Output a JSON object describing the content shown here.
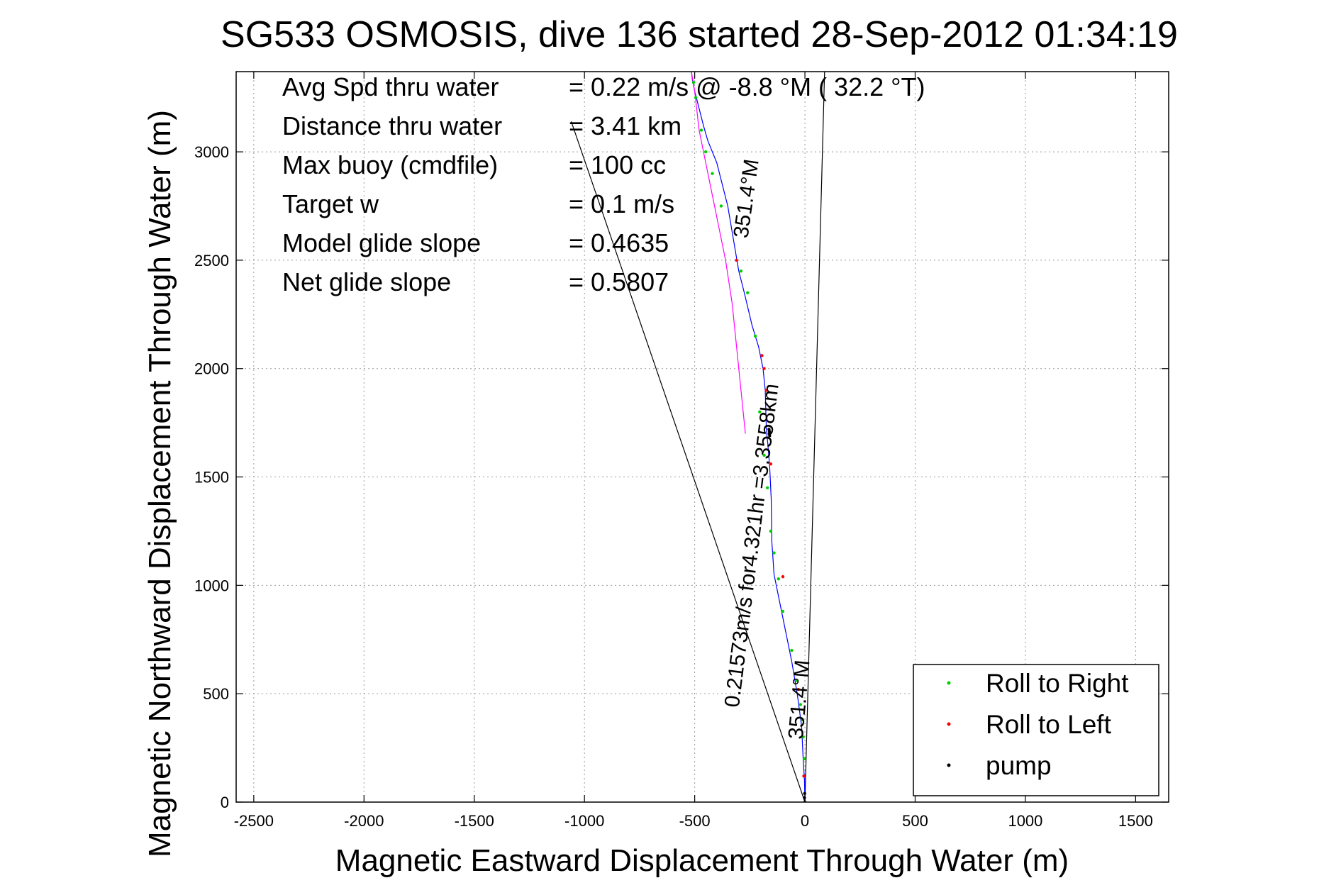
{
  "chart_data": {
    "type": "scatter",
    "title": "SG533 OSMOSIS, dive 136 started 28-Sep-2012 01:34:19",
    "xlabel": "Magnetic Eastward Displacement Through Water (m)",
    "ylabel": "Magnetic Northward Displacement Through Water (m)",
    "xlim": [
      -2580,
      1650
    ],
    "ylim": [
      0,
      3370
    ],
    "xticks": [
      -2500,
      -2000,
      -1500,
      -1000,
      -500,
      0,
      500,
      1000,
      1500
    ],
    "yticks": [
      0,
      500,
      1000,
      1500,
      2000,
      2500,
      3000
    ],
    "grid": true,
    "info_lines": [
      {
        "label": "Avg Spd thru water",
        "value": "=  0.22 m/s @  -8.8 °M ( 32.2 °T)"
      },
      {
        "label": "Distance thru water",
        "value": "=  3.41 km"
      },
      {
        "label": "Max buoy (cmdfile)",
        "value": "= 100 cc"
      },
      {
        "label": "Target w",
        "value": "= 0.1 m/s"
      },
      {
        "label": "Model glide slope",
        "value": "= 0.4635"
      },
      {
        "label": "Net glide slope",
        "value": "= 0.5807"
      }
    ],
    "annotations": [
      {
        "text": "351.4°M",
        "x": -235,
        "y": 2780,
        "angle": -82
      },
      {
        "text": "0.21573m/s for4.321hr =3.3558km",
        "x": -210,
        "y": 1180,
        "angle": -83
      },
      {
        "text": "351.4°M",
        "x": 5,
        "y": 470,
        "angle": -85
      }
    ],
    "reference_lines": [
      {
        "x": [
          0,
          -1060
        ],
        "y": [
          0,
          3140
        ]
      },
      {
        "x": [
          0,
          90
        ],
        "y": [
          0,
          3400
        ]
      }
    ],
    "series": [
      {
        "type": "line",
        "color": "#0000ff",
        "x": [
          0,
          -2,
          -8,
          -15,
          -35,
          -60,
          -90,
          -120,
          -140,
          -150,
          -153,
          -160,
          -168,
          -175,
          -180,
          -190,
          -210,
          -240,
          -275,
          -300,
          -350,
          -400,
          -440,
          -460,
          -480,
          -500,
          -510,
          -515
        ],
        "y": [
          0,
          100,
          200,
          350,
          500,
          650,
          800,
          950,
          1050,
          1200,
          1400,
          1550,
          1650,
          1720,
          1900,
          2000,
          2100,
          2200,
          2350,
          2450,
          2750,
          2950,
          3050,
          3120,
          3200,
          3280,
          3330,
          3370
        ]
      },
      {
        "type": "line",
        "color": "#ff00ff",
        "x": [
          -515,
          -500,
          -480,
          -450,
          -420,
          -390,
          -360,
          -330,
          -300,
          -270
        ],
        "y": [
          3370,
          3280,
          3100,
          2950,
          2800,
          2650,
          2500,
          2300,
          2000,
          1700
        ]
      },
      {
        "type": "points",
        "name": "Roll to Right",
        "color": "#00d000",
        "x": [
          -3,
          -8,
          -12,
          -20,
          -35,
          -60,
          -100,
          -120,
          -140,
          -155,
          -170,
          -185,
          -205,
          -225,
          -260,
          -290,
          -380,
          -420,
          -450,
          -470,
          -495,
          -505
        ],
        "y": [
          200,
          300,
          380,
          450,
          560,
          700,
          880,
          1030,
          1150,
          1250,
          1450,
          1600,
          1800,
          2150,
          2350,
          2450,
          2750,
          2900,
          3000,
          3100,
          3250,
          3320
        ]
      },
      {
        "type": "points",
        "name": "Roll to Left",
        "color": "#ff0000",
        "x": [
          -5,
          -30,
          -100,
          -155,
          -175,
          -185,
          -195,
          -310
        ],
        "y": [
          120,
          520,
          1040,
          1560,
          1900,
          2000,
          2060,
          2500
        ]
      },
      {
        "type": "points",
        "name": "pump",
        "color": "#000000",
        "x": [
          0,
          -2,
          -1,
          -160,
          -162,
          -161,
          -163
        ],
        "y": [
          0,
          20,
          40,
          1690,
          1700,
          1710,
          1720
        ]
      }
    ],
    "legend": {
      "position": "bottom-right",
      "entries": [
        {
          "label": "Roll to Right",
          "color": "#00d000"
        },
        {
          "label": "Roll to Left",
          "color": "#ff0000"
        },
        {
          "label": "pump",
          "color": "#000000"
        }
      ]
    }
  }
}
